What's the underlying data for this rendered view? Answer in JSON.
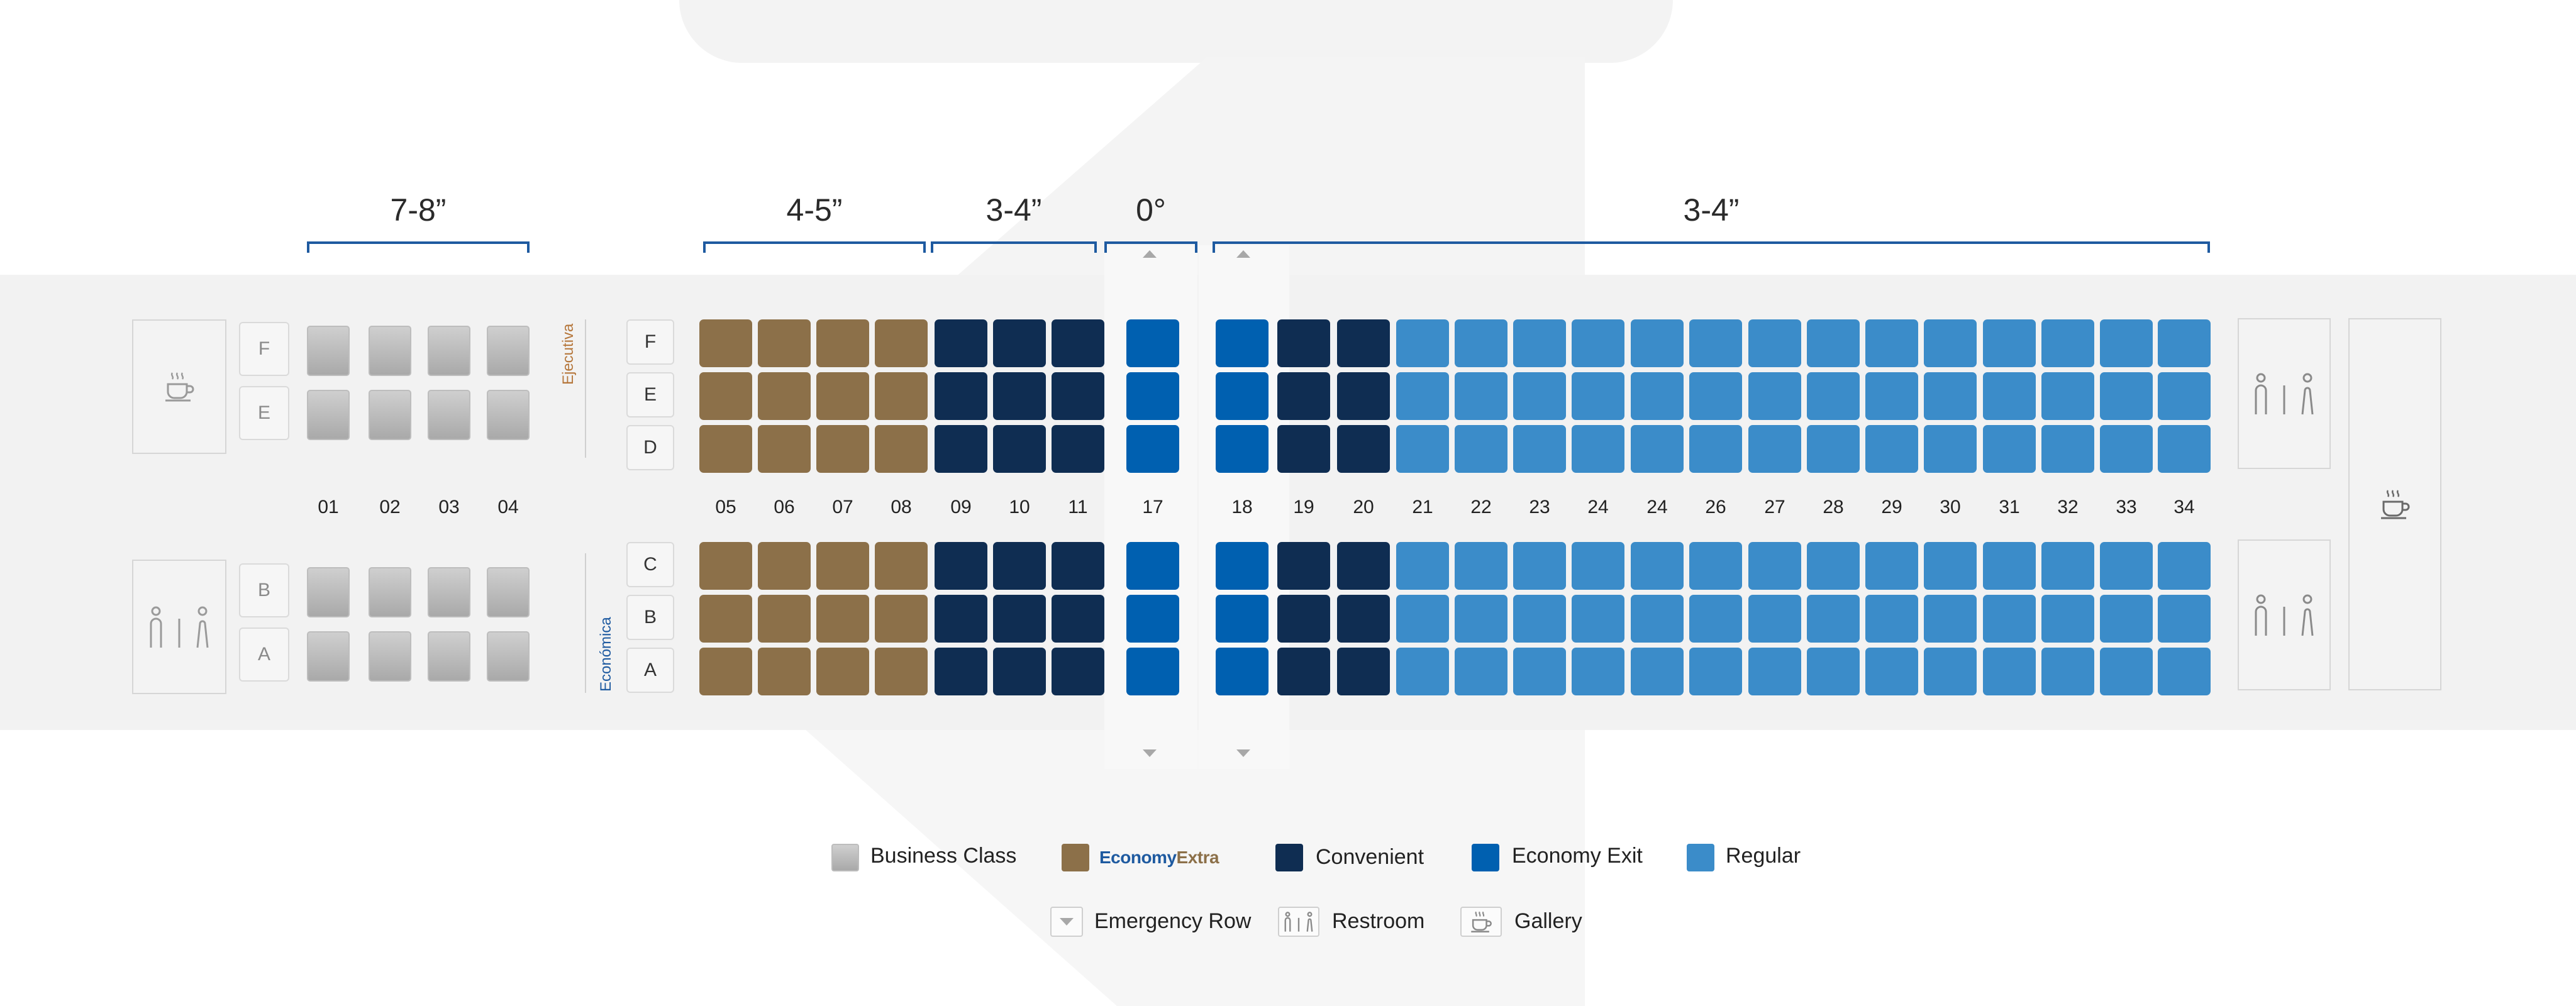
{
  "pitch_labels": {
    "business": "7-8”",
    "economy_extra": "4-5”",
    "convenient": "3-4”",
    "exit": "0°",
    "regular": "3-4”"
  },
  "class_labels": {
    "upper": "Ejecutiva",
    "lower": "Económica"
  },
  "business_seat_letters": {
    "top": [
      "F",
      "E"
    ],
    "bottom": [
      "B",
      "A"
    ]
  },
  "economy_seat_letters": {
    "top": [
      "F",
      "E",
      "D"
    ],
    "bottom": [
      "C",
      "B",
      "A"
    ]
  },
  "business_rows": [
    "01",
    "02",
    "03",
    "04"
  ],
  "economy_rows": [
    "05",
    "06",
    "07",
    "08",
    "09",
    "10",
    "11",
    "17",
    "18",
    "19",
    "20",
    "21",
    "22",
    "23",
    "24",
    "24",
    "26",
    "27",
    "28",
    "29",
    "30",
    "31",
    "32",
    "33",
    "34"
  ],
  "seat_types": [
    "economy-extra",
    "economy-extra",
    "economy-extra",
    "economy-extra",
    "convenient",
    "convenient",
    "convenient",
    "exit",
    "exit",
    "convenient",
    "convenient",
    "regular",
    "regular",
    "regular",
    "regular",
    "regular",
    "regular",
    "regular",
    "regular",
    "regular",
    "regular",
    "regular",
    "regular",
    "regular",
    "regular"
  ],
  "legend": {
    "business": "Business Class",
    "economy_extra_brand_a": "Economy",
    "economy_extra_brand_b": "Extra",
    "convenient": "Convenient",
    "exit": "Economy Exit",
    "regular": "Regular",
    "emergency_row": "Emergency Row",
    "restroom": "Restroom",
    "gallery": "Gallery"
  },
  "colors": {
    "business": "#b5b5b5",
    "economy_extra": "#8c7049",
    "convenient": "#0f2d52",
    "exit": "#0060b0",
    "regular": "#3b8cc9",
    "bracket": "#1e5aa0",
    "ejecutiva_label": "#b5763a",
    "economica_label": "#1e5aa0"
  },
  "icons": {
    "gallery": "coffee-cup-icon",
    "restroom": "restroom-icon",
    "emergency": "emergency-row-arrow-icon"
  }
}
